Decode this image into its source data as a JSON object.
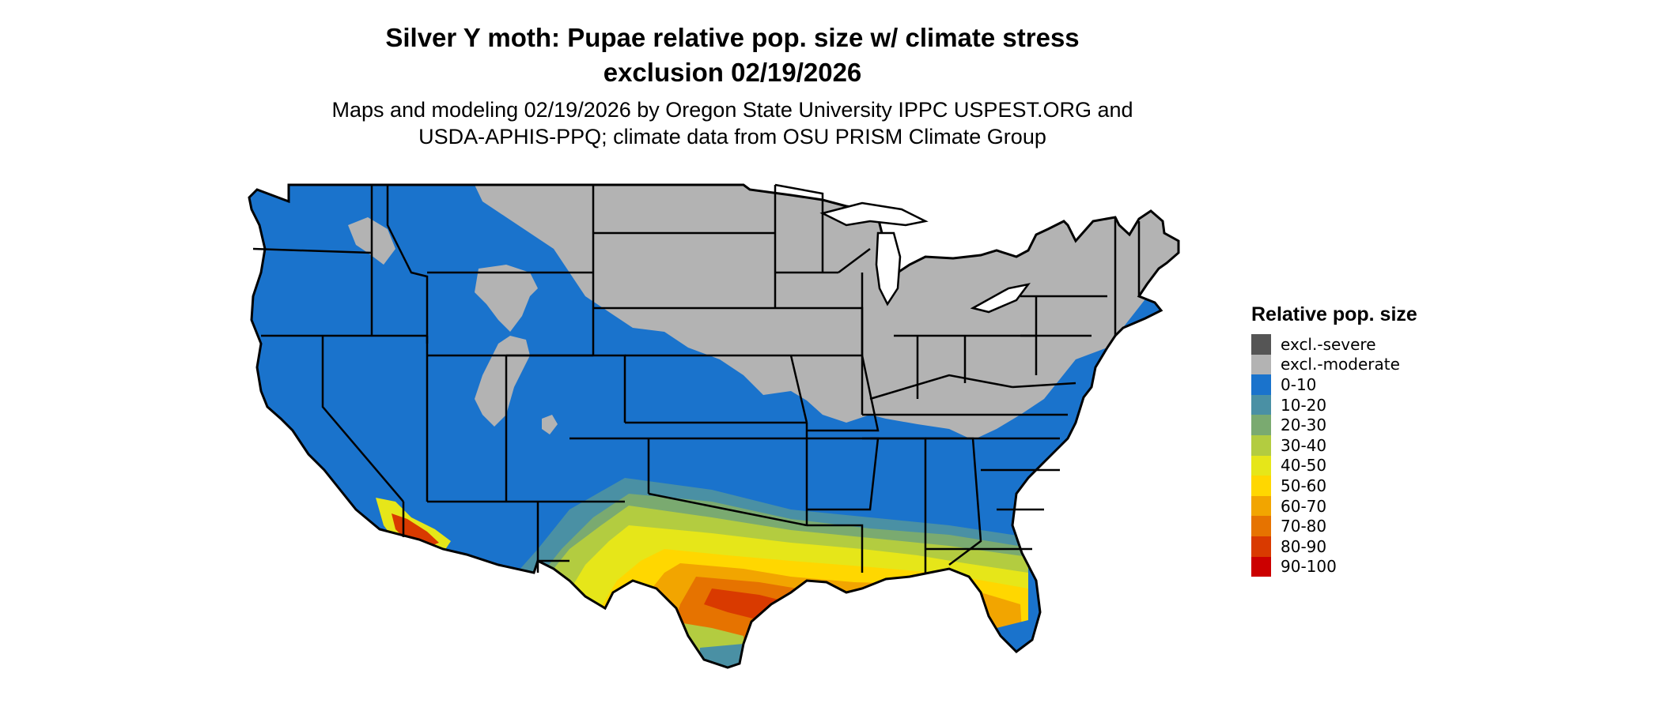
{
  "title_lines": [
    "Silver Y moth: Pupae relative pop. size w/ climate stress",
    "exclusion 02/19/2026"
  ],
  "subtitle_lines": [
    "Maps and modeling 02/19/2026 by Oregon State University IPPC USPEST.ORG and",
    "USDA-APHIS-PPQ; climate data from OSU PRISM Climate Group"
  ],
  "legend": {
    "title": "Relative pop. size",
    "items": [
      {
        "label": "excl.-severe",
        "color": "#555555"
      },
      {
        "label": "excl.-moderate",
        "color": "#b3b3b3"
      },
      {
        "label": "0-10",
        "color": "#1a73cc"
      },
      {
        "label": "10-20",
        "color": "#4a90a4"
      },
      {
        "label": "20-30",
        "color": "#7aaa70"
      },
      {
        "label": "30-40",
        "color": "#b3cc40"
      },
      {
        "label": "40-50",
        "color": "#e6e619"
      },
      {
        "label": "50-60",
        "color": "#ffd700"
      },
      {
        "label": "60-70",
        "color": "#f2a500"
      },
      {
        "label": "70-80",
        "color": "#e67300"
      },
      {
        "label": "80-90",
        "color": "#d93a00"
      },
      {
        "label": "90-100",
        "color": "#cc0000"
      }
    ]
  },
  "map_colors": {
    "state_border": "#000000"
  }
}
